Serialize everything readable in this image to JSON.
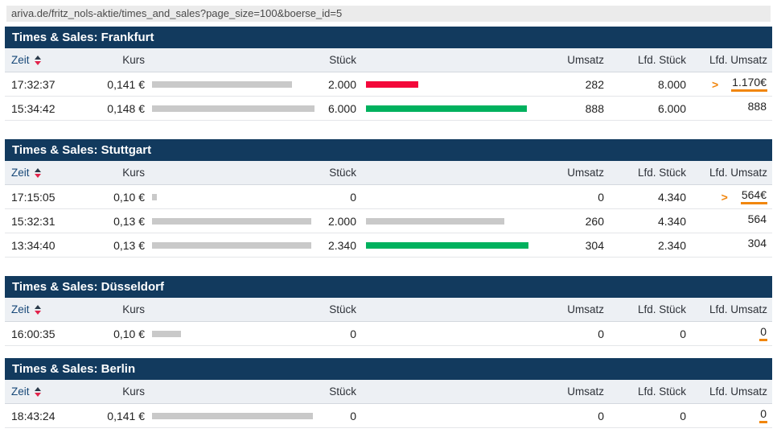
{
  "url_bar": "ariva.de/fritz_nols-aktie/times_and_sales?page_size=100&boerse_id=5",
  "columns": {
    "zeit": "Zeit",
    "kurs": "Kurs",
    "stueck": "Stück",
    "umsatz": "Umsatz",
    "lfd_stueck": "Lfd. Stück",
    "lfd_umsatz": "Lfd. Umsatz"
  },
  "colors": {
    "title_bar": "#123a5e",
    "bar_gray": "#c9c9c9",
    "bar_red": "#f3083a",
    "bar_green": "#00b15e",
    "orange_accent": "#f1860d",
    "sort_arrow_red": "#e1234b"
  },
  "sections": [
    {
      "title": "Times & Sales: Frankfurt",
      "rows": [
        {
          "zeit": "17:32:37",
          "kurs": "0,141 €",
          "kurs_bar_w": "86%",
          "stueck": "2.000",
          "stueck_bar_w": "32%",
          "stueck_bar_color": "#f3083a",
          "umsatz": "282",
          "lfd_stueck": "8.000",
          "arrow": ">",
          "lfd_umsatz": "1.170€",
          "underline": "#f1860d"
        },
        {
          "zeit": "15:34:42",
          "kurs": "0,148 €",
          "kurs_bar_w": "100%",
          "stueck": "6.000",
          "stueck_bar_w": "99%",
          "stueck_bar_color": "#00b15e",
          "umsatz": "888",
          "lfd_stueck": "6.000",
          "arrow": "",
          "lfd_umsatz": "888",
          "underline": "transparent"
        }
      ]
    },
    {
      "title": "Times & Sales: Stuttgart",
      "rows": [
        {
          "zeit": "17:15:05",
          "kurs": "0,10 €",
          "kurs_bar_w": "3%",
          "stueck": "0",
          "stueck_bar_w": "0",
          "stueck_bar_color": "transparent",
          "umsatz": "0",
          "lfd_stueck": "4.340",
          "arrow": ">",
          "lfd_umsatz": "564€",
          "underline": "#f1860d"
        },
        {
          "zeit": "15:32:31",
          "kurs": "0,13 €",
          "kurs_bar_w": "98%",
          "stueck": "2.000",
          "stueck_bar_w": "85%",
          "stueck_bar_color": "#c9c9c9",
          "umsatz": "260",
          "lfd_stueck": "4.340",
          "arrow": "",
          "lfd_umsatz": "564",
          "underline": "transparent"
        },
        {
          "zeit": "13:34:40",
          "kurs": "0,13 €",
          "kurs_bar_w": "98%",
          "stueck": "2.340",
          "stueck_bar_w": "100%",
          "stueck_bar_color": "#00b15e",
          "umsatz": "304",
          "lfd_stueck": "2.340",
          "arrow": "",
          "lfd_umsatz": "304",
          "underline": "transparent"
        }
      ]
    },
    {
      "title": "Times & Sales: Düsseldorf",
      "rows": [
        {
          "zeit": "16:00:35",
          "kurs": "0,10 €",
          "kurs_bar_w": "18%",
          "stueck": "0",
          "stueck_bar_w": "0",
          "stueck_bar_color": "transparent",
          "umsatz": "0",
          "lfd_stueck": "0",
          "arrow": "",
          "lfd_umsatz": "0",
          "underline": "#f1860d"
        }
      ]
    },
    {
      "title": "Times & Sales: Berlin",
      "rows": [
        {
          "zeit": "18:43:24",
          "kurs": "0,141 €",
          "kurs_bar_w": "99%",
          "stueck": "0",
          "stueck_bar_w": "0",
          "stueck_bar_color": "transparent",
          "umsatz": "0",
          "lfd_stueck": "0",
          "arrow": "",
          "lfd_umsatz": "0",
          "underline": "#f1860d"
        }
      ]
    }
  ]
}
